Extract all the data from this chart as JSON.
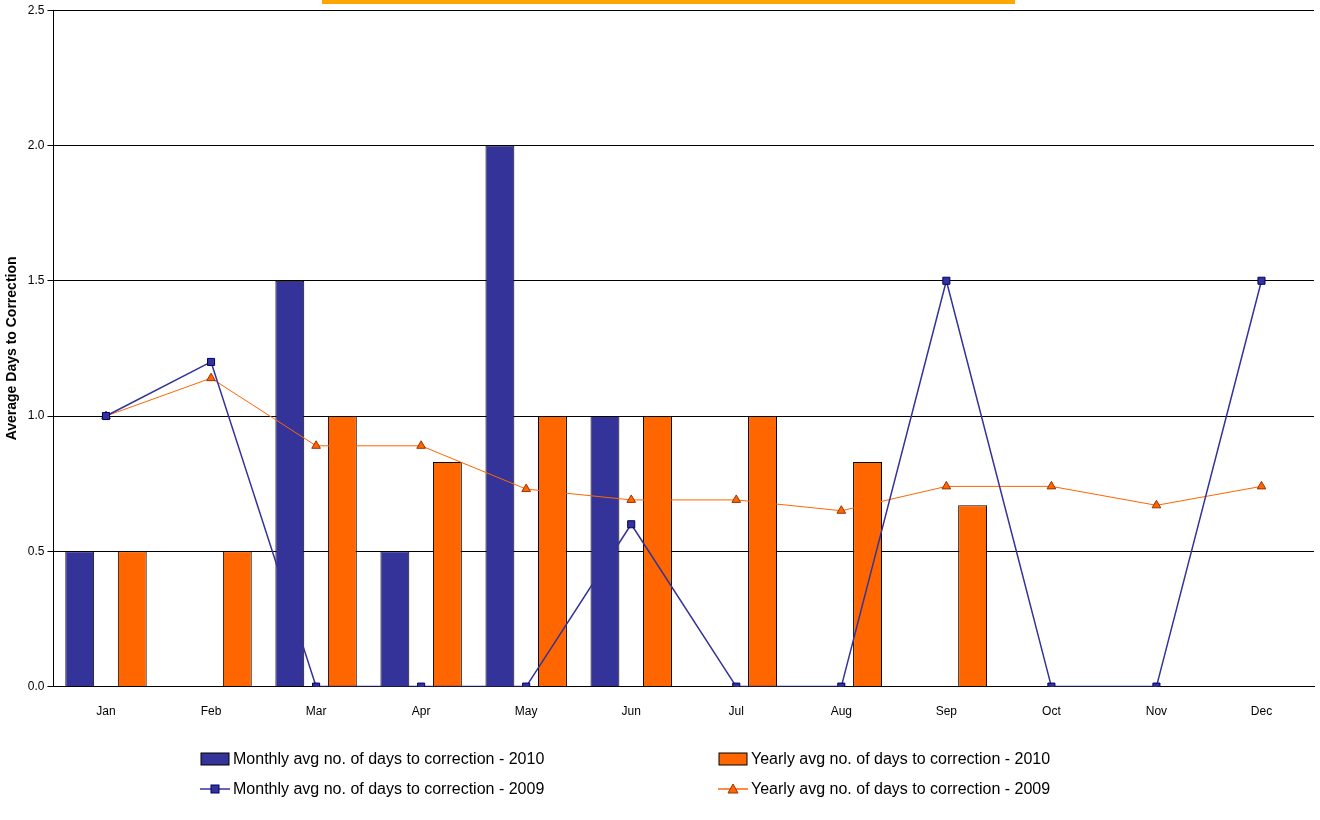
{
  "chart_data": {
    "type": "bar",
    "ylabel": "Average Days to Correction",
    "categories": [
      "Jan",
      "Feb",
      "Mar",
      "Apr",
      "May",
      "Jun",
      "Jul",
      "Aug",
      "Sep",
      "Oct",
      "Nov",
      "Dec"
    ],
    "series": [
      {
        "name": "Monthly avg no. of days to correction - 2010",
        "color": "#333399",
        "values": [
          0.5,
          null,
          1.5,
          0.5,
          2.0,
          1.0,
          null,
          null,
          null,
          null,
          null,
          null
        ]
      },
      {
        "name": "Yearly avg no. of days to correction - 2010",
        "color": "#ff6600",
        "values": [
          0.5,
          0.5,
          1.0,
          0.83,
          1.0,
          1.0,
          1.0,
          0.83,
          0.67,
          null,
          null,
          null
        ]
      },
      {
        "name": "Monthly avg no. of days to correction - 2009",
        "type": "line",
        "marker": "square",
        "color": "#333399",
        "values": [
          1.0,
          1.2,
          0,
          0,
          0,
          0.6,
          0,
          0,
          1.5,
          0,
          0,
          1.5
        ]
      },
      {
        "name": "Yearly avg no. of days to correction - 2009",
        "type": "line",
        "marker": "triangle",
        "color": "#ff6600",
        "values": [
          1.0,
          1.14,
          0.89,
          0.89,
          0.73,
          0.69,
          0.69,
          0.65,
          0.74,
          0.74,
          0.67,
          0.74
        ]
      }
    ],
    "ylim": [
      0,
      2.5
    ],
    "yticks": [
      {
        "value": 0,
        "label": "0.0"
      },
      {
        "value": 0.5,
        "label": "0.5"
      },
      {
        "value": 1,
        "label": "1.0"
      },
      {
        "value": 1.5,
        "label": "1.5"
      },
      {
        "value": 2,
        "label": "2.0"
      },
      {
        "value": 2.5,
        "label": "2.5"
      }
    ],
    "grid": "y",
    "legend": "bottom"
  }
}
